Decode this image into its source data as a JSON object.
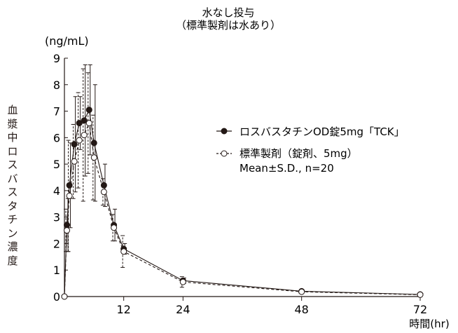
{
  "chart_data": {
    "type": "line",
    "title": "水なし投与",
    "subtitle": "（標準製剤は水あり）",
    "ylabel": "血漿中ロスバスタチン濃度",
    "yunit": "(ng/mL)",
    "xlabel": "時間(hr)",
    "xlim": [
      0,
      72
    ],
    "ylim": [
      0,
      9
    ],
    "xticks": [
      12,
      24,
      48,
      72
    ],
    "yticks": [
      0,
      1,
      2,
      3,
      4,
      5,
      6,
      7,
      8,
      9
    ],
    "legend_position": "right",
    "legend_note": "Mean±S.D., n=20",
    "series": [
      {
        "name": "ロスバスタチンOD錠5mg「TCK」",
        "marker": "filled-circle",
        "line_style": "solid",
        "x": [
          0,
          0.5,
          1,
          2,
          3,
          4,
          5,
          6,
          8,
          10,
          12,
          24,
          48,
          72
        ],
        "y": [
          0,
          2.7,
          4.2,
          5.75,
          6.55,
          6.65,
          7.05,
          5.8,
          4.2,
          2.7,
          1.8,
          0.6,
          0.2,
          0.08
        ],
        "err": [
          0,
          1.0,
          1.6,
          1.8,
          1.0,
          2.1,
          1.7,
          2.2,
          0.8,
          0.6,
          0.2,
          0.1,
          0.04,
          0.03
        ]
      },
      {
        "name": "標準製剤（錠剤、5mg）",
        "marker": "open-circle",
        "line_style": "dashed",
        "x": [
          0,
          0.5,
          1,
          2,
          3,
          4,
          5,
          6,
          8,
          10,
          12,
          24,
          48,
          72
        ],
        "y": [
          0,
          2.5,
          3.8,
          5.1,
          5.9,
          6.1,
          6.55,
          5.25,
          3.95,
          2.6,
          1.7,
          0.55,
          0.18,
          0.07
        ],
        "err": [
          0,
          0.8,
          2.1,
          1.4,
          1.8,
          2.5,
          1.9,
          1.6,
          0.5,
          0.5,
          0.6,
          0.2,
          0.04,
          0.03
        ]
      }
    ]
  }
}
